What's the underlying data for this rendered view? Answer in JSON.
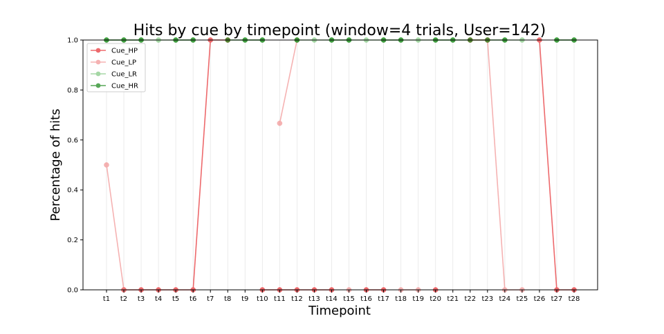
{
  "chart_data": {
    "type": "line",
    "title": "Hits by cue by timepoint (window=4 trials, User=142)",
    "xlabel": "Timepoint",
    "ylabel": "Percentage of hits",
    "ylim": [
      0,
      1
    ],
    "yticks": [
      "0.0",
      "0.2",
      "0.4",
      "0.6",
      "0.8",
      "1.0"
    ],
    "ytick_values": [
      0,
      0.2,
      0.4,
      0.6,
      0.8,
      1.0
    ],
    "grid": "vertical",
    "legend_position": "top-left",
    "categories": [
      "t1",
      "t2",
      "t3",
      "t4",
      "t5",
      "t6",
      "t7",
      "t8",
      "t9",
      "t10",
      "t11",
      "t12",
      "t13",
      "t14",
      "t15",
      "t16",
      "t17",
      "t18",
      "t19",
      "t20",
      "t21",
      "t22",
      "t23",
      "t24",
      "t25",
      "t26",
      "t27",
      "t28"
    ],
    "series": [
      {
        "name": "Cue_HP",
        "color": "#e8383b",
        "opacity": 0.75,
        "values": [
          null,
          0,
          0,
          0,
          0,
          0,
          1,
          1,
          null,
          0,
          0,
          0,
          0,
          0,
          null,
          0,
          0,
          null,
          null,
          0,
          null,
          1,
          1,
          null,
          null,
          1,
          0,
          0
        ]
      },
      {
        "name": "Cue_LP",
        "color": "#f08080",
        "opacity": 0.6,
        "values": [
          0.5,
          0,
          null,
          null,
          null,
          null,
          null,
          null,
          null,
          null,
          0.6667,
          1,
          null,
          null,
          0,
          null,
          null,
          0,
          0,
          null,
          null,
          null,
          1,
          0,
          0,
          null,
          null,
          null
        ]
      },
      {
        "name": "Cue_LR",
        "color": "#5cb85c",
        "opacity": 0.55,
        "values": [
          1,
          1,
          1,
          1,
          1,
          1,
          null,
          null,
          1,
          1,
          null,
          1,
          1,
          1,
          1,
          1,
          1,
          1,
          1,
          1,
          1,
          null,
          null,
          1,
          1,
          null,
          1,
          1
        ]
      },
      {
        "name": "Cue_HR",
        "color": "#1f8a1f",
        "opacity": 0.75,
        "values": [
          1,
          1,
          1,
          null,
          1,
          1,
          null,
          1,
          1,
          1,
          null,
          1,
          null,
          1,
          1,
          null,
          1,
          1,
          null,
          1,
          1,
          1,
          1,
          1,
          null,
          null,
          1,
          1
        ]
      }
    ]
  }
}
